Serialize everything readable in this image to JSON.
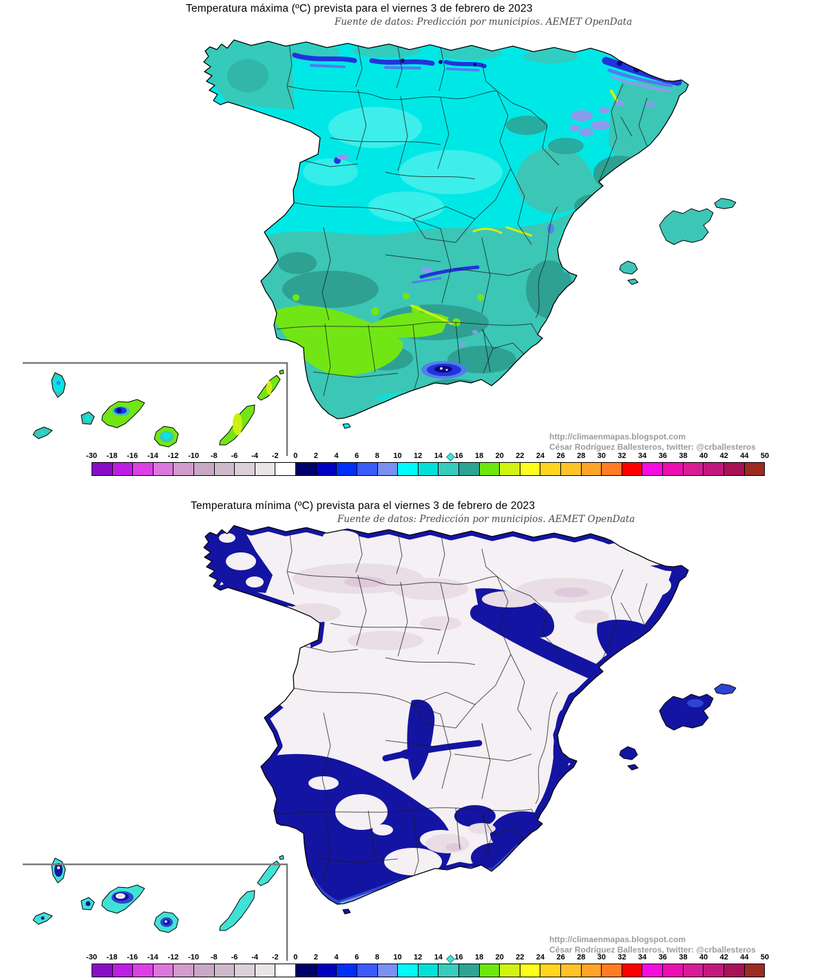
{
  "panels": [
    {
      "id": "tmax",
      "title": "Temperatura máxima (ºC) prevista para el viernes 3 de febrero de 2023",
      "subtitle": "Fuente de datos: Predicción por municipios. AEMET OpenData",
      "credit_url": "http://climaenmapas.blogspot.com",
      "credit_author": "César Rodríguez Ballesteros, twitter: @crballesteros"
    },
    {
      "id": "tmin",
      "title": "Temperatura mínima (ºC) prevista para el viernes 3 de febrero de 2023",
      "subtitle": "Fuente de datos: Predicción por municipios. AEMET OpenData",
      "credit_url": "http://climaenmapas.blogspot.com",
      "credit_author": "César Rodríguez Ballesteros, twitter: @crballesteros"
    }
  ],
  "colorbar": {
    "unit": "ºC",
    "tick_labels": [
      "-30",
      "-18",
      "-16",
      "-14",
      "-12",
      "-10",
      "-8",
      "-6",
      "-4",
      "-2",
      "0",
      "2",
      "4",
      "6",
      "8",
      "10",
      "12",
      "14",
      "16",
      "18",
      "20",
      "22",
      "24",
      "26",
      "28",
      "30",
      "32",
      "34",
      "36",
      "38",
      "40",
      "42",
      "44",
      "50"
    ],
    "cell_colors": [
      "#8A0DC6",
      "#BE1EE4",
      "#DC40E4",
      "#DC78DC",
      "#D29CCC",
      "#C9A8C4",
      "#CEB9CA",
      "#DBCFD8",
      "#E9E4E8",
      "#FFFFFF",
      "#00006B",
      "#0000BE",
      "#0030F8",
      "#3C5CFA",
      "#7A90F2",
      "#00FBFB",
      "#00E0D8",
      "#38CCBE",
      "#2EA494",
      "#6CE80E",
      "#D4F211",
      "#FFFF1E",
      "#FFD51E",
      "#FFC328",
      "#FFA428",
      "#FF7D28",
      "#FF0000",
      "#F50CE0",
      "#EE0DB2",
      "#D81C96",
      "#C2187E",
      "#A81256",
      "#9C2B22"
    ]
  },
  "map_colors": {
    "sea": "#FFFFFF",
    "coast": "#000000",
    "border": "#1A1A1A",
    "cyan": "#00E8E6",
    "cyan_light": "#49EFEA",
    "teal": "#3CC6B6",
    "teal_dark": "#2EA193",
    "green": "#72E614",
    "lime": "#CDF013",
    "blue_mid": "#2233DC",
    "blue_royal": "#5578F2",
    "periwinkle": "#8C9AEE",
    "navy_dark": "#0A0A86",
    "white_min": "#F4F0F3",
    "pink_tint": "#E9DDE6",
    "pink_deep": "#DFC9DA",
    "navy": "#1414A2",
    "royal": "#2E44D4",
    "lightblue": "#7C96EE",
    "cyan_canary": "#40E2D6",
    "inset": "#7A7A7A"
  }
}
